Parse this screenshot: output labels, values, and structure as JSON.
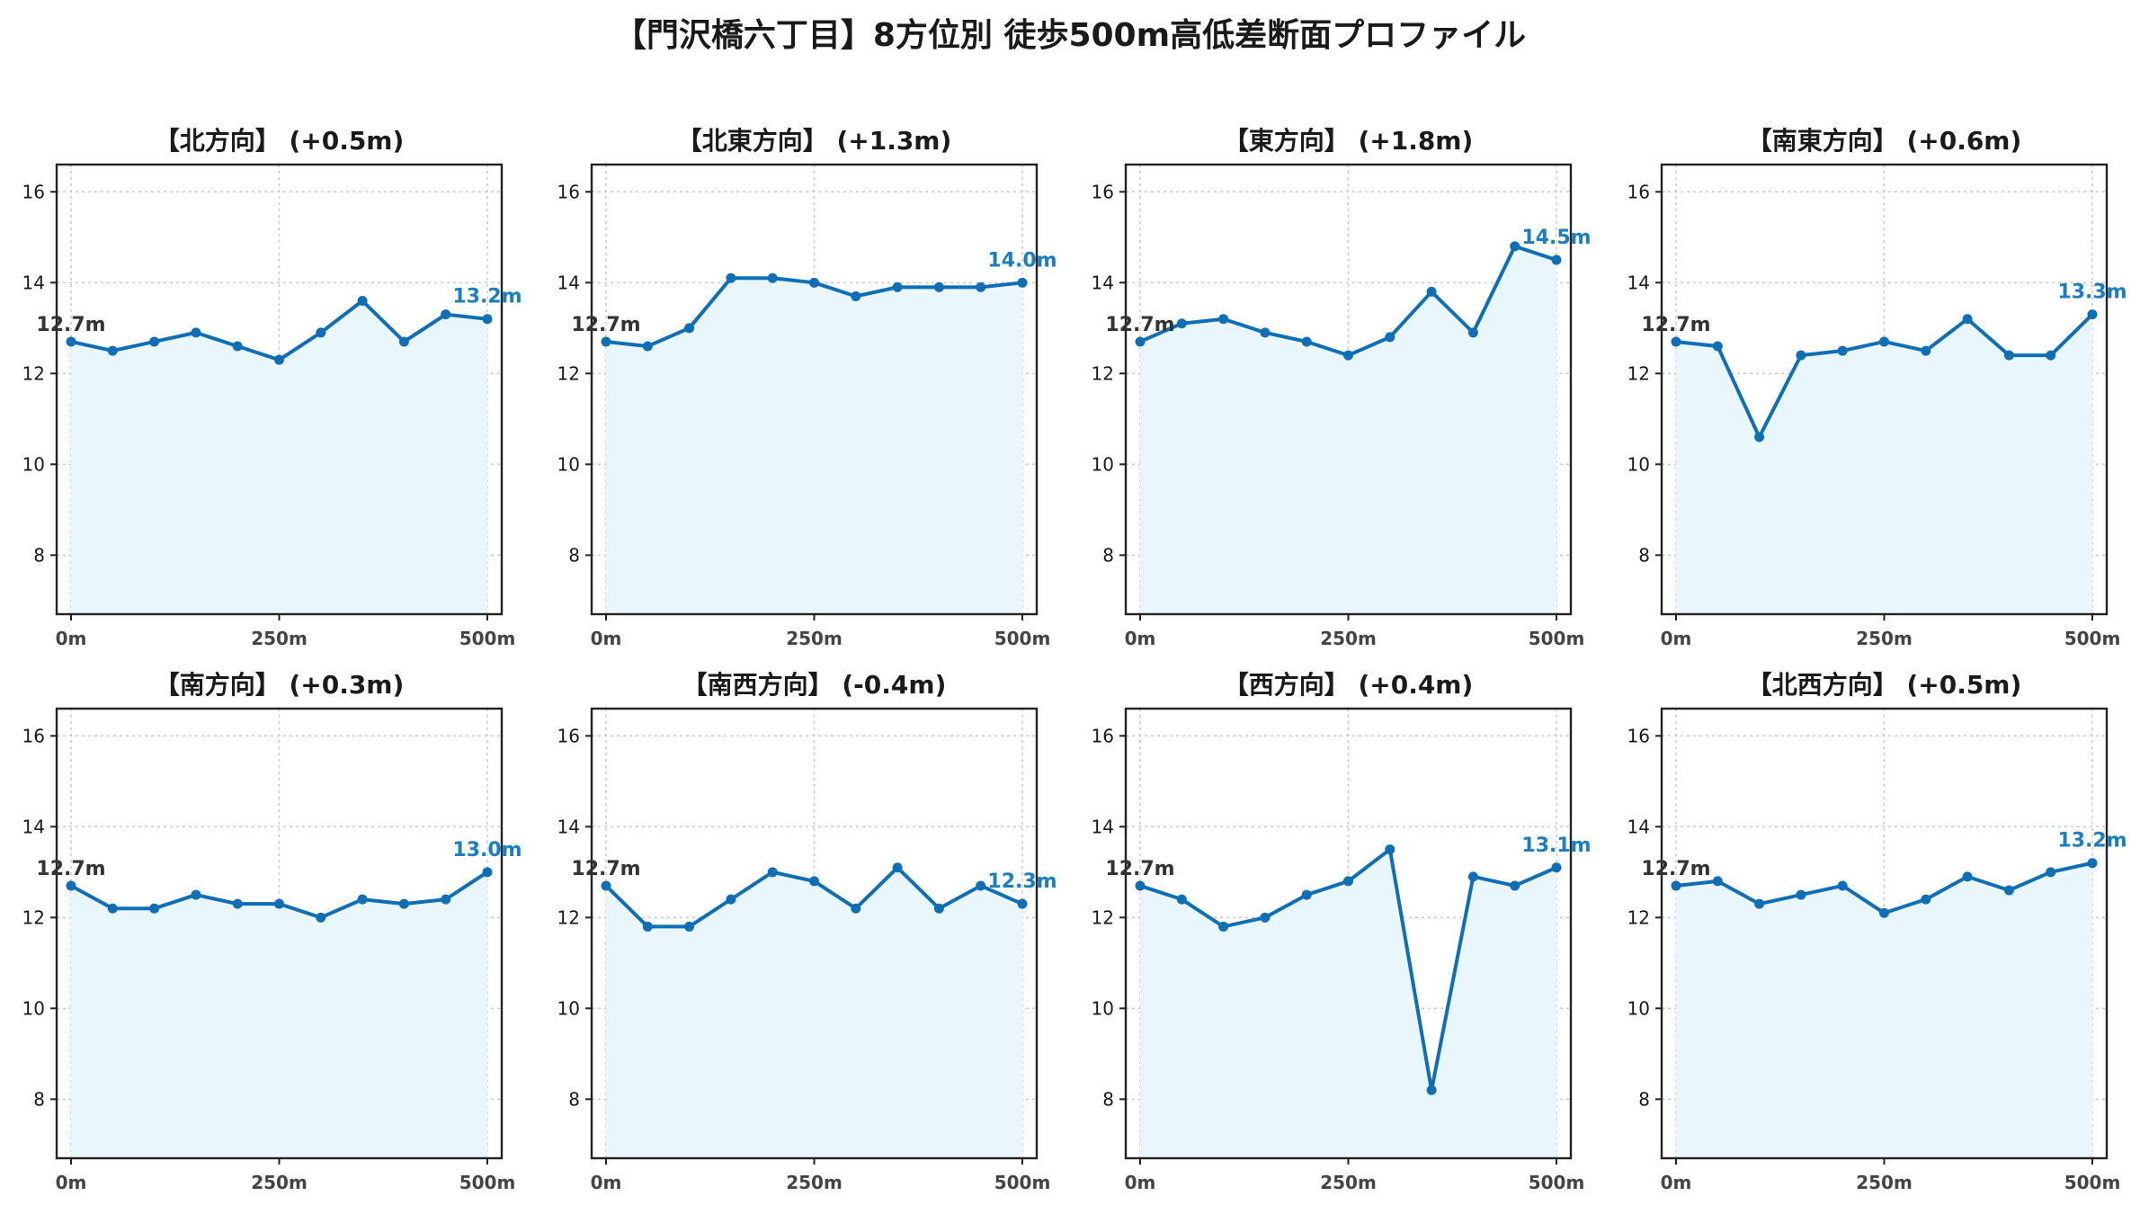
{
  "title": "【門沢橋六丁目】8方位別 徒歩500m高低差断面プロファイル",
  "colors": {
    "line": "#0f6fb6",
    "fill": "#e9f6fc",
    "end_label": "#1a7fc0",
    "start_label": "#333333"
  },
  "chart_data": [
    {
      "type": "area",
      "title": "【北方向】 (+0.5m)",
      "x": [
        0,
        50,
        100,
        150,
        200,
        250,
        300,
        350,
        400,
        450,
        500
      ],
      "values": [
        12.7,
        12.5,
        12.7,
        12.9,
        12.6,
        12.3,
        12.9,
        13.6,
        12.7,
        13.3,
        13.2
      ],
      "start_label": "12.7m",
      "end_label": "13.2m",
      "xticks": [
        "0m",
        "250m",
        "500m"
      ],
      "yticks": [
        "8",
        "10",
        "12",
        "14",
        "16"
      ],
      "xlim": [
        0,
        500
      ],
      "ylim": [
        6.7,
        16.6
      ],
      "grid": true
    },
    {
      "type": "area",
      "title": "【北東方向】 (+1.3m)",
      "x": [
        0,
        50,
        100,
        150,
        200,
        250,
        300,
        350,
        400,
        450,
        500
      ],
      "values": [
        12.7,
        12.6,
        13.0,
        14.1,
        14.1,
        14.0,
        13.7,
        13.9,
        13.9,
        13.9,
        14.0
      ],
      "start_label": "12.7m",
      "end_label": "14.0m",
      "xticks": [
        "0m",
        "250m",
        "500m"
      ],
      "yticks": [
        "8",
        "10",
        "12",
        "14",
        "16"
      ],
      "xlim": [
        0,
        500
      ],
      "ylim": [
        6.7,
        16.6
      ],
      "grid": true
    },
    {
      "type": "area",
      "title": "【東方向】 (+1.8m)",
      "x": [
        0,
        50,
        100,
        150,
        200,
        250,
        300,
        350,
        400,
        450,
        500
      ],
      "values": [
        12.7,
        13.1,
        13.2,
        12.9,
        12.7,
        12.4,
        12.8,
        13.8,
        12.9,
        14.8,
        14.5
      ],
      "start_label": "12.7m",
      "end_label": "14.5m",
      "xticks": [
        "0m",
        "250m",
        "500m"
      ],
      "yticks": [
        "8",
        "10",
        "12",
        "14",
        "16"
      ],
      "xlim": [
        0,
        500
      ],
      "ylim": [
        6.7,
        16.6
      ],
      "grid": true
    },
    {
      "type": "area",
      "title": "【南東方向】 (+0.6m)",
      "x": [
        0,
        50,
        100,
        150,
        200,
        250,
        300,
        350,
        400,
        450,
        500
      ],
      "values": [
        12.7,
        12.6,
        10.6,
        12.4,
        12.5,
        12.7,
        12.5,
        13.2,
        12.4,
        12.4,
        13.3
      ],
      "start_label": "12.7m",
      "end_label": "13.3m",
      "xticks": [
        "0m",
        "250m",
        "500m"
      ],
      "yticks": [
        "8",
        "10",
        "12",
        "14",
        "16"
      ],
      "xlim": [
        0,
        500
      ],
      "ylim": [
        6.7,
        16.6
      ],
      "grid": true
    },
    {
      "type": "area",
      "title": "【南方向】 (+0.3m)",
      "x": [
        0,
        50,
        100,
        150,
        200,
        250,
        300,
        350,
        400,
        450,
        500
      ],
      "values": [
        12.7,
        12.2,
        12.2,
        12.5,
        12.3,
        12.3,
        12.0,
        12.4,
        12.3,
        12.4,
        13.0
      ],
      "start_label": "12.7m",
      "end_label": "13.0m",
      "xticks": [
        "0m",
        "250m",
        "500m"
      ],
      "yticks": [
        "8",
        "10",
        "12",
        "14",
        "16"
      ],
      "xlim": [
        0,
        500
      ],
      "ylim": [
        6.7,
        16.6
      ],
      "grid": true
    },
    {
      "type": "area",
      "title": "【南西方向】 (-0.4m)",
      "x": [
        0,
        50,
        100,
        150,
        200,
        250,
        300,
        350,
        400,
        450,
        500
      ],
      "values": [
        12.7,
        11.8,
        11.8,
        12.4,
        13.0,
        12.8,
        12.2,
        13.1,
        12.2,
        12.7,
        12.3
      ],
      "start_label": "12.7m",
      "end_label": "12.3m",
      "xticks": [
        "0m",
        "250m",
        "500m"
      ],
      "yticks": [
        "8",
        "10",
        "12",
        "14",
        "16"
      ],
      "xlim": [
        0,
        500
      ],
      "ylim": [
        6.7,
        16.6
      ],
      "grid": true
    },
    {
      "type": "area",
      "title": "【西方向】 (+0.4m)",
      "x": [
        0,
        50,
        100,
        150,
        200,
        250,
        300,
        350,
        400,
        450,
        500
      ],
      "values": [
        12.7,
        12.4,
        11.8,
        12.0,
        12.5,
        12.8,
        13.5,
        8.2,
        12.9,
        12.7,
        13.1
      ],
      "start_label": "12.7m",
      "end_label": "13.1m",
      "xticks": [
        "0m",
        "250m",
        "500m"
      ],
      "yticks": [
        "8",
        "10",
        "12",
        "14",
        "16"
      ],
      "xlim": [
        0,
        500
      ],
      "ylim": [
        6.7,
        16.6
      ],
      "grid": true
    },
    {
      "type": "area",
      "title": "【北西方向】 (+0.5m)",
      "x": [
        0,
        50,
        100,
        150,
        200,
        250,
        300,
        350,
        400,
        450,
        500
      ],
      "values": [
        12.7,
        12.8,
        12.3,
        12.5,
        12.7,
        12.1,
        12.4,
        12.9,
        12.6,
        13.0,
        13.2
      ],
      "start_label": "12.7m",
      "end_label": "13.2m",
      "xticks": [
        "0m",
        "250m",
        "500m"
      ],
      "yticks": [
        "8",
        "10",
        "12",
        "14",
        "16"
      ],
      "xlim": [
        0,
        500
      ],
      "ylim": [
        6.7,
        16.6
      ],
      "grid": true
    }
  ]
}
